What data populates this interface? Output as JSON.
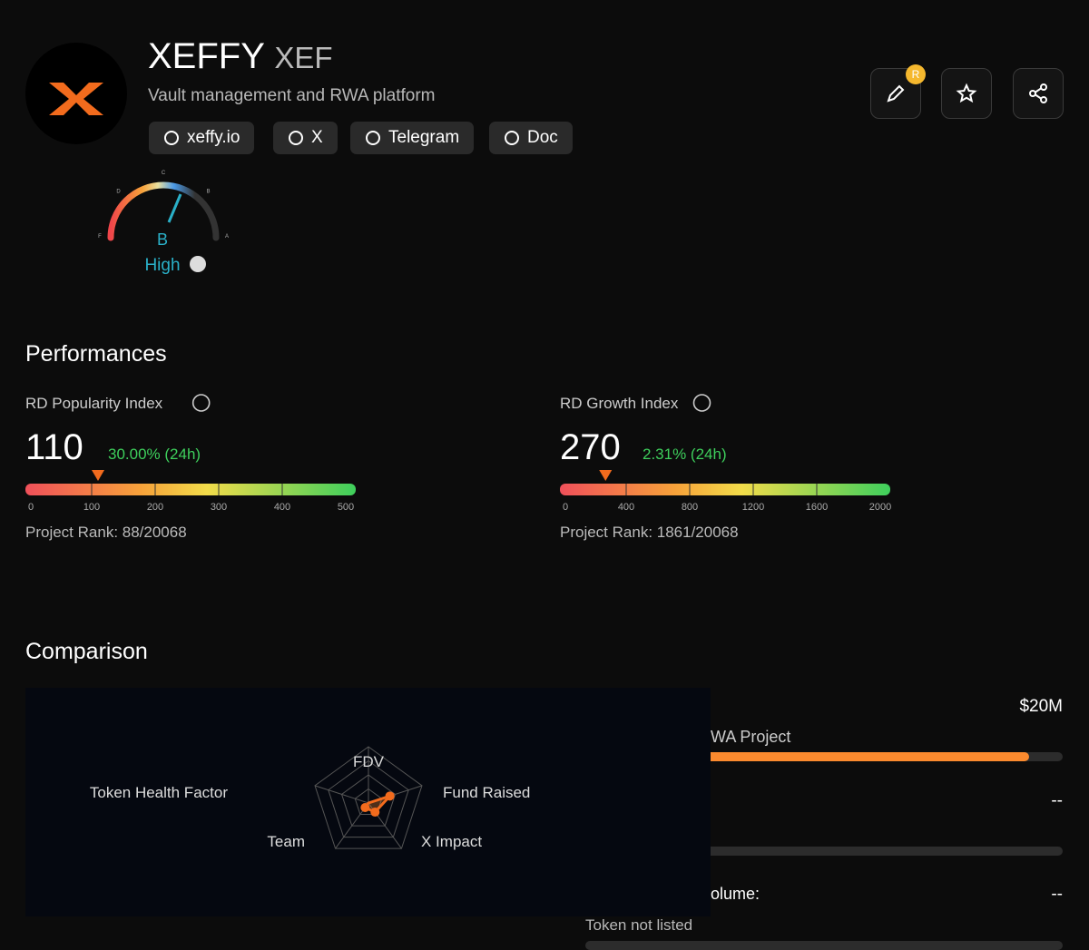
{
  "header": {
    "name": "XEFFY",
    "ticker": "XEF",
    "description": "Vault management and RWA platform",
    "links": [
      "xeffy.io",
      "X",
      "Telegram",
      "Doc"
    ],
    "badge": "R"
  },
  "rating": {
    "scale": [
      "F",
      "D",
      "C",
      "B",
      "A"
    ],
    "grade": "B",
    "level": "High"
  },
  "performances": {
    "title": "Performances",
    "indices": [
      {
        "label": "RD Popularity Index",
        "value": 110,
        "change": "30.00% (24h)",
        "ticks": [
          0,
          100,
          200,
          300,
          400,
          500
        ],
        "rank": "Project Rank: 88/20068"
      },
      {
        "label": "RD Growth Index",
        "value": 270,
        "change": "2.31% (24h)",
        "ticks": [
          0,
          400,
          800,
          1200,
          1600,
          2000
        ],
        "rank": "Project Rank: 1861/20068"
      }
    ]
  },
  "comparison": {
    "title": "Comparison",
    "axes": [
      "FDV",
      "Fund Raised",
      "X Impact",
      "Team",
      "Token Health Factor"
    ],
    "values": [
      0,
      0.4,
      0.2,
      0.1,
      0
    ],
    "rlim": [
      0,
      1
    ],
    "details": [
      {
        "value": "$20M",
        "label": "WA Project",
        "progress": 93
      },
      {
        "value": "--",
        "progress": 0
      },
      {
        "label": "olume:",
        "value": "--",
        "note": "Token not listed",
        "progress": 0
      }
    ]
  }
}
